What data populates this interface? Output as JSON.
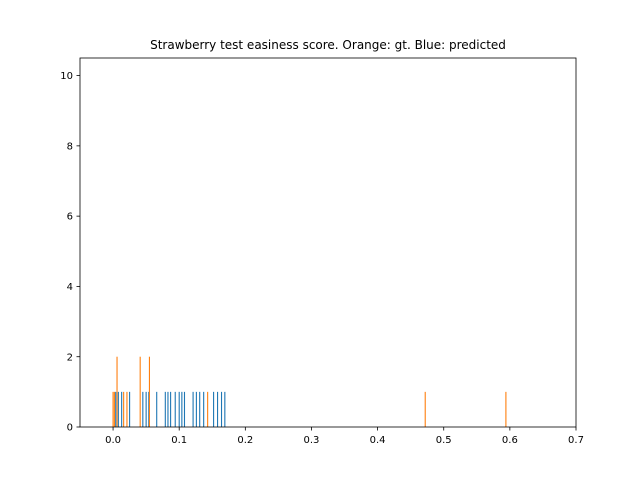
{
  "chart_data": {
    "type": "bar",
    "title": "Strawberry test easiness score. Orange: gt. Blue: predicted",
    "xlabel": "",
    "ylabel": "",
    "xlim": [
      -0.05,
      0.7
    ],
    "ylim": [
      0,
      10.5
    ],
    "grid": false,
    "xticks": [
      0.0,
      0.1,
      0.2,
      0.3,
      0.4,
      0.5,
      0.6,
      0.7
    ],
    "xtick_labels": [
      "0.0",
      "0.1",
      "0.2",
      "0.3",
      "0.4",
      "0.5",
      "0.6",
      "0.7"
    ],
    "yticks": [
      0,
      2,
      4,
      6,
      8,
      10
    ],
    "ytick_labels": [
      "0",
      "2",
      "4",
      "6",
      "8",
      "10"
    ],
    "series": [
      {
        "color": "#1f77b4",
        "x": [
          0.004,
          0.008,
          0.013,
          0.025,
          0.045,
          0.05,
          0.054,
          0.066,
          0.079,
          0.083,
          0.087,
          0.094,
          0.1,
          0.104,
          0.108,
          0.121,
          0.126,
          0.131,
          0.137,
          0.152,
          0.158,
          0.164,
          0.169
        ],
        "y": [
          1,
          1,
          1,
          1,
          1,
          1,
          1,
          1,
          1,
          1,
          1,
          1,
          1,
          1,
          1,
          1,
          1,
          1,
          1,
          1,
          1,
          1,
          1
        ]
      },
      {
        "color": "#ff7f0e",
        "x": [
          0.0,
          0.002,
          0.006,
          0.016,
          0.021,
          0.041,
          0.055,
          0.143,
          0.472,
          0.594
        ],
        "y": [
          1,
          1,
          2,
          1,
          1,
          2,
          2,
          1,
          1,
          1
        ]
      }
    ]
  }
}
